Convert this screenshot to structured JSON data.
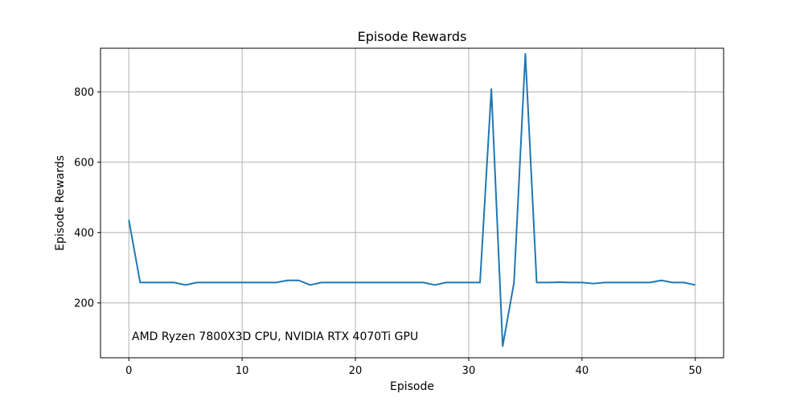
{
  "chart_data": {
    "type": "line",
    "title": "Episode Rewards",
    "xlabel": "Episode",
    "ylabel": "Episode Rewards",
    "annotation": "AMD Ryzen 7800X3D CPU, NVIDIA RTX 4070Ti GPU",
    "xlim": [
      -2.5,
      52.5
    ],
    "ylim": [
      44,
      924
    ],
    "xticks": [
      0,
      10,
      20,
      30,
      40,
      50
    ],
    "yticks": [
      200,
      400,
      600,
      800
    ],
    "grid": true,
    "line_color": "#1f77b4",
    "series": [
      {
        "x": [
          0,
          1,
          2,
          3,
          4,
          5,
          6,
          7,
          8,
          9,
          10,
          11,
          12,
          13,
          14,
          15,
          16,
          17,
          18,
          19,
          20,
          21,
          22,
          23,
          24,
          25,
          26,
          27,
          28,
          29,
          30,
          31,
          32,
          33,
          34,
          35,
          36,
          37,
          38,
          39,
          40,
          41,
          42,
          43,
          44,
          45,
          46,
          47,
          48,
          49,
          50
        ],
        "values": [
          436,
          258,
          258,
          258,
          258,
          251,
          258,
          258,
          258,
          258,
          258,
          258,
          258,
          258,
          264,
          264,
          251,
          258,
          258,
          258,
          258,
          258,
          258,
          258,
          258,
          258,
          258,
          251,
          258,
          258,
          258,
          258,
          808,
          77,
          258,
          908,
          258,
          258,
          259,
          258,
          258,
          255,
          258,
          258,
          258,
          258,
          258,
          264,
          258,
          258,
          251
        ]
      }
    ]
  }
}
